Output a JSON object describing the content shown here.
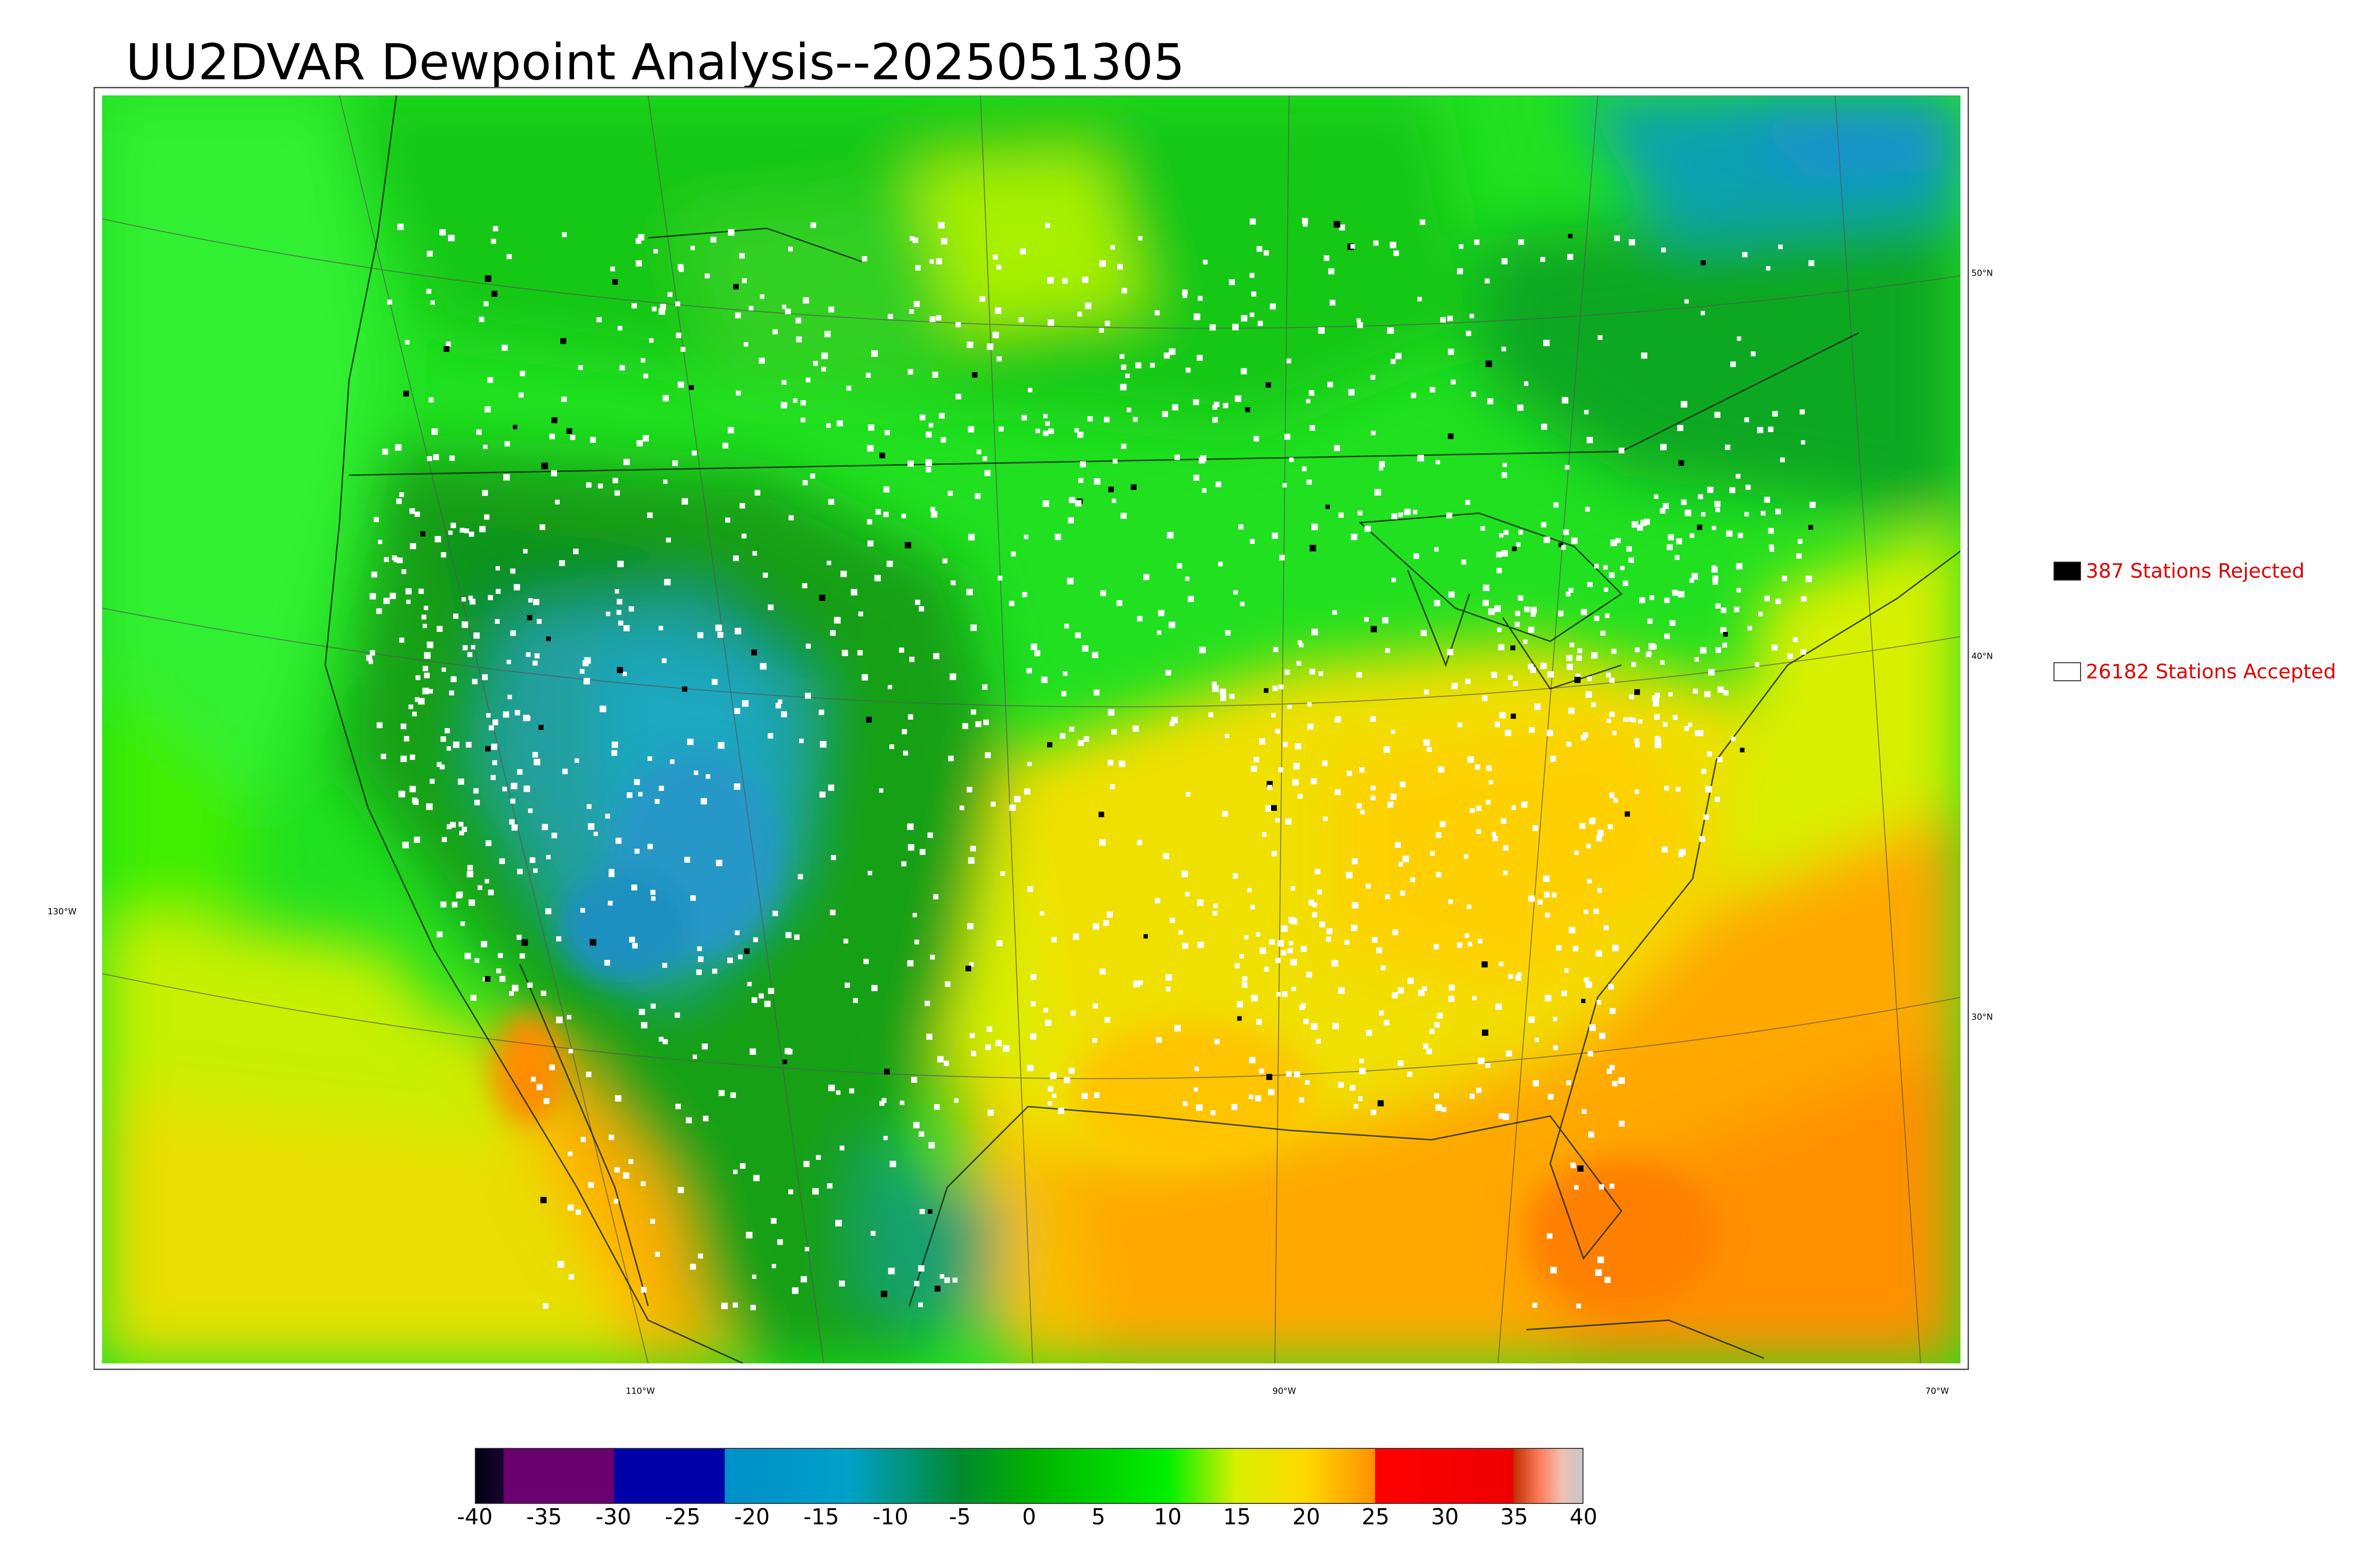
{
  "title": "UU2DVAR Dewpoint Analysis--2025051305",
  "lat_labels": [
    "50°N",
    "40°N",
    "30°N"
  ],
  "lon_labels": [
    "130°W",
    "110°W",
    "90°W",
    "70°W"
  ],
  "legend": {
    "rejected": {
      "label": "387 Stations Rejected",
      "color": "#000000"
    },
    "accepted": {
      "label": "26182 Stations Accepted",
      "color": "#ffffff"
    }
  },
  "colorbar": {
    "ticks": [
      "-40",
      "-35",
      "-30",
      "-25",
      "-20",
      "-15",
      "-10",
      "-5",
      "0",
      "5",
      "10",
      "15",
      "20",
      "25",
      "30",
      "35",
      "40"
    ],
    "stops": [
      {
        "value": -40,
        "color": "#000010"
      },
      {
        "value": -38,
        "color": "#1a0530"
      },
      {
        "value": -38,
        "color": "#6a006e"
      },
      {
        "value": -30,
        "color": "#6a006e"
      },
      {
        "value": -30,
        "color": "#0000a8"
      },
      {
        "value": -22,
        "color": "#0000a8"
      },
      {
        "value": -22,
        "color": "#0090c8"
      },
      {
        "value": -13,
        "color": "#00a0c8"
      },
      {
        "value": -5,
        "color": "#008a30"
      },
      {
        "value": 0,
        "color": "#00b000"
      },
      {
        "value": 10,
        "color": "#00f000"
      },
      {
        "value": 15,
        "color": "#d8f000"
      },
      {
        "value": 20,
        "color": "#ffd800"
      },
      {
        "value": 25,
        "color": "#ff9000"
      },
      {
        "value": 25,
        "color": "#ff0000"
      },
      {
        "value": 35,
        "color": "#ee0000"
      },
      {
        "value": 35,
        "color": "#c03000"
      },
      {
        "value": 37,
        "color": "#ff8060"
      },
      {
        "value": 38.5,
        "color": "#f0c0b0"
      },
      {
        "value": 40,
        "color": "#c8c8c8"
      }
    ]
  }
}
